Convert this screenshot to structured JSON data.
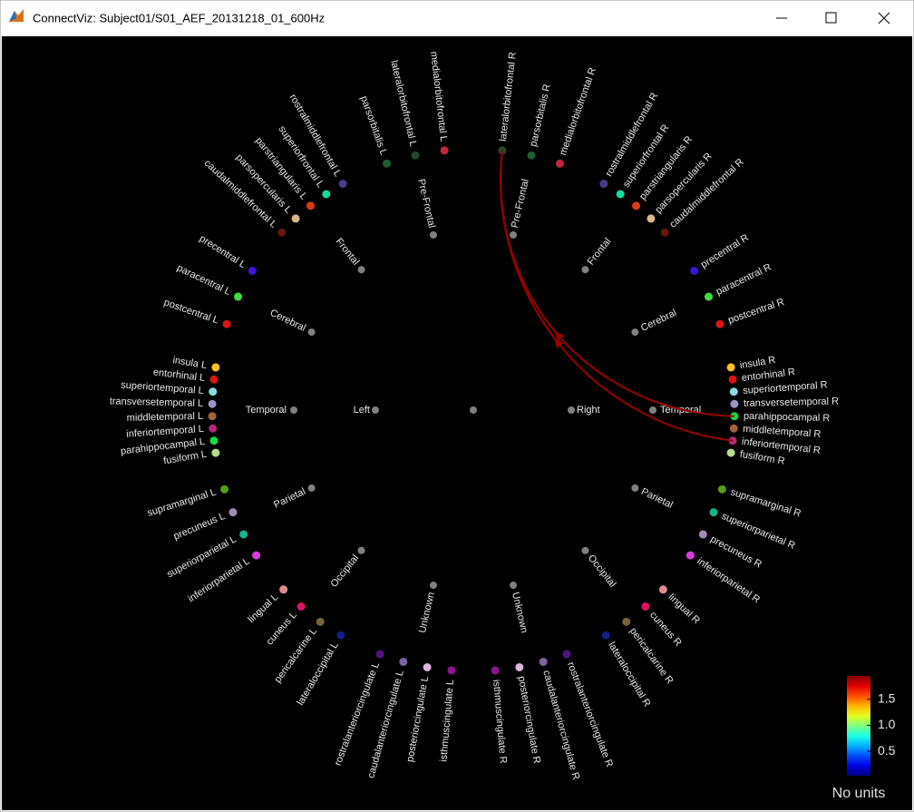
{
  "window": {
    "title": "ConnectViz: Subject01/S01_AEF_20131218_01_600Hz"
  },
  "node_color": "#808080",
  "hemispheres": [
    {
      "name": "Left",
      "lobes": [
        {
          "name": "Pre-Frontal",
          "regions": [
            {
              "label": "medialorbitofrontal L",
              "color": "#c8233e"
            },
            {
              "label": "lateralorbitofrontal L",
              "color": "#234a2b"
            },
            {
              "label": "parsorbitalis L",
              "color": "#1f6030"
            }
          ]
        },
        {
          "name": "Frontal",
          "regions": [
            {
              "label": "rostralmiddlefrontal L",
              "color": "#4b3a8c"
            },
            {
              "label": "superiorfrontal L",
              "color": "#14dca0"
            },
            {
              "label": "parstriangularis L",
              "color": "#dc3c14"
            },
            {
              "label": "parsopercularis L",
              "color": "#dcb48c"
            },
            {
              "label": "caudalmiddlefrontal L",
              "color": "#64190a"
            }
          ]
        },
        {
          "name": "Cerebral",
          "regions": [
            {
              "label": "precentral L",
              "color": "#3c14dc"
            },
            {
              "label": "paracentral L",
              "color": "#3cdc3c"
            },
            {
              "label": "postcentral L",
              "color": "#dc1414"
            }
          ]
        },
        {
          "name": "Temporal",
          "regions": [
            {
              "label": "insula L",
              "color": "#ffc020"
            },
            {
              "label": "entorhinal L",
              "color": "#dc140a"
            },
            {
              "label": "superiortemporal L",
              "color": "#8cdcdc"
            },
            {
              "label": "transversetemporal L",
              "color": "#9696c8"
            },
            {
              "label": "middletemporal L",
              "color": "#a06432"
            },
            {
              "label": "inferiortemporal L",
              "color": "#b42878"
            },
            {
              "label": "parahippocampal L",
              "color": "#14dc3c"
            },
            {
              "label": "fusiform L",
              "color": "#b4dc8c"
            }
          ]
        },
        {
          "name": "Parietal",
          "regions": [
            {
              "label": "supramarginal L",
              "color": "#50a014"
            },
            {
              "label": "precuneus L",
              "color": "#a08cb4"
            },
            {
              "label": "superiorparietal L",
              "color": "#14b48c"
            },
            {
              "label": "inferiorparietal L",
              "color": "#dc3cdc"
            }
          ]
        },
        {
          "name": "Occipital",
          "regions": [
            {
              "label": "lingual L",
              "color": "#e18c8c"
            },
            {
              "label": "cuneus L",
              "color": "#dc1464"
            },
            {
              "label": "pericalcarine L",
              "color": "#78643c"
            },
            {
              "label": "lateraloccipital L",
              "color": "#141e8c"
            }
          ]
        },
        {
          "name": "Unknown",
          "regions": [
            {
              "label": "rostralanteriorcingulate L",
              "color": "#501482"
            },
            {
              "label": "caudalanteriorcingulate L",
              "color": "#7d64a0"
            },
            {
              "label": "posteriorcingulate L",
              "color": "#dcb4dc"
            },
            {
              "label": "isthmuscingulate L",
              "color": "#8c148c"
            }
          ]
        }
      ]
    },
    {
      "name": "Right",
      "lobes": [
        {
          "name": "Pre-Frontal",
          "regions": [
            {
              "label": "lateralorbitofrontal R",
              "color": "#234a2b"
            },
            {
              "label": "parsorbitalis R",
              "color": "#1f6030"
            },
            {
              "label": "medialorbitofrontal R",
              "color": "#c8233e"
            }
          ]
        },
        {
          "name": "Frontal",
          "regions": [
            {
              "label": "rostralmiddlefrontal R",
              "color": "#4b3a8c"
            },
            {
              "label": "superiorfrontal R",
              "color": "#14dca0"
            },
            {
              "label": "parstriangularis R",
              "color": "#dc3c14"
            },
            {
              "label": "parsopercularis R",
              "color": "#dcb48c"
            },
            {
              "label": "caudalmiddlefrontal R",
              "color": "#64190a"
            }
          ]
        },
        {
          "name": "Cerebral",
          "regions": [
            {
              "label": "precentral R",
              "color": "#3c14dc"
            },
            {
              "label": "paracentral R",
              "color": "#3cdc3c"
            },
            {
              "label": "postcentral R",
              "color": "#dc1414"
            }
          ]
        },
        {
          "name": "Temporal",
          "regions": [
            {
              "label": "insula R",
              "color": "#ffc020"
            },
            {
              "label": "entorhinal R",
              "color": "#dc140a"
            },
            {
              "label": "superiortemporal R",
              "color": "#8cdcdc"
            },
            {
              "label": "transversetemporal R",
              "color": "#9696c8"
            },
            {
              "label": "parahippocampal R",
              "color": "#14dc3c"
            },
            {
              "label": "middletemporal R",
              "color": "#a06432"
            },
            {
              "label": "inferiortemporal R",
              "color": "#b42878"
            },
            {
              "label": "fusiform R",
              "color": "#b4dc8c"
            }
          ]
        },
        {
          "name": "Parietal",
          "regions": [
            {
              "label": "supramarginal R",
              "color": "#50a014"
            },
            {
              "label": "superiorparietal R",
              "color": "#14b48c"
            },
            {
              "label": "precuneus R",
              "color": "#a08cb4"
            },
            {
              "label": "inferiorparietal R",
              "color": "#dc3cdc"
            }
          ]
        },
        {
          "name": "Occipital",
          "regions": [
            {
              "label": "lingual R",
              "color": "#e18c8c"
            },
            {
              "label": "cuneus R",
              "color": "#dc1464"
            },
            {
              "label": "pericalcarine R",
              "color": "#78643c"
            },
            {
              "label": "lateraloccipital R",
              "color": "#141e8c"
            }
          ]
        },
        {
          "name": "Unknown",
          "regions": [
            {
              "label": "rostralanteriorcingulate R",
              "color": "#501482"
            },
            {
              "label": "caudalanteriorcingulate R",
              "color": "#7d64a0"
            },
            {
              "label": "posteriorcingulate R",
              "color": "#dcb4dc"
            },
            {
              "label": "isthmuscingulate R",
              "color": "#8c148c"
            }
          ]
        }
      ]
    }
  ],
  "links": [
    {
      "from": "parahippocampal R",
      "to": "lateralorbitofrontal R",
      "value": 1.9
    },
    {
      "from": "inferiortemporal R",
      "to": "lateralorbitofrontal R",
      "value": 1.9
    }
  ],
  "colorbar": {
    "colormap": "jet",
    "clim": [
      0.03,
      1.95
    ],
    "ticks": [
      1.5,
      {
        "value": 1,
        "label": "1.0"
      },
      0.5
    ],
    "unit_label": "No units"
  }
}
